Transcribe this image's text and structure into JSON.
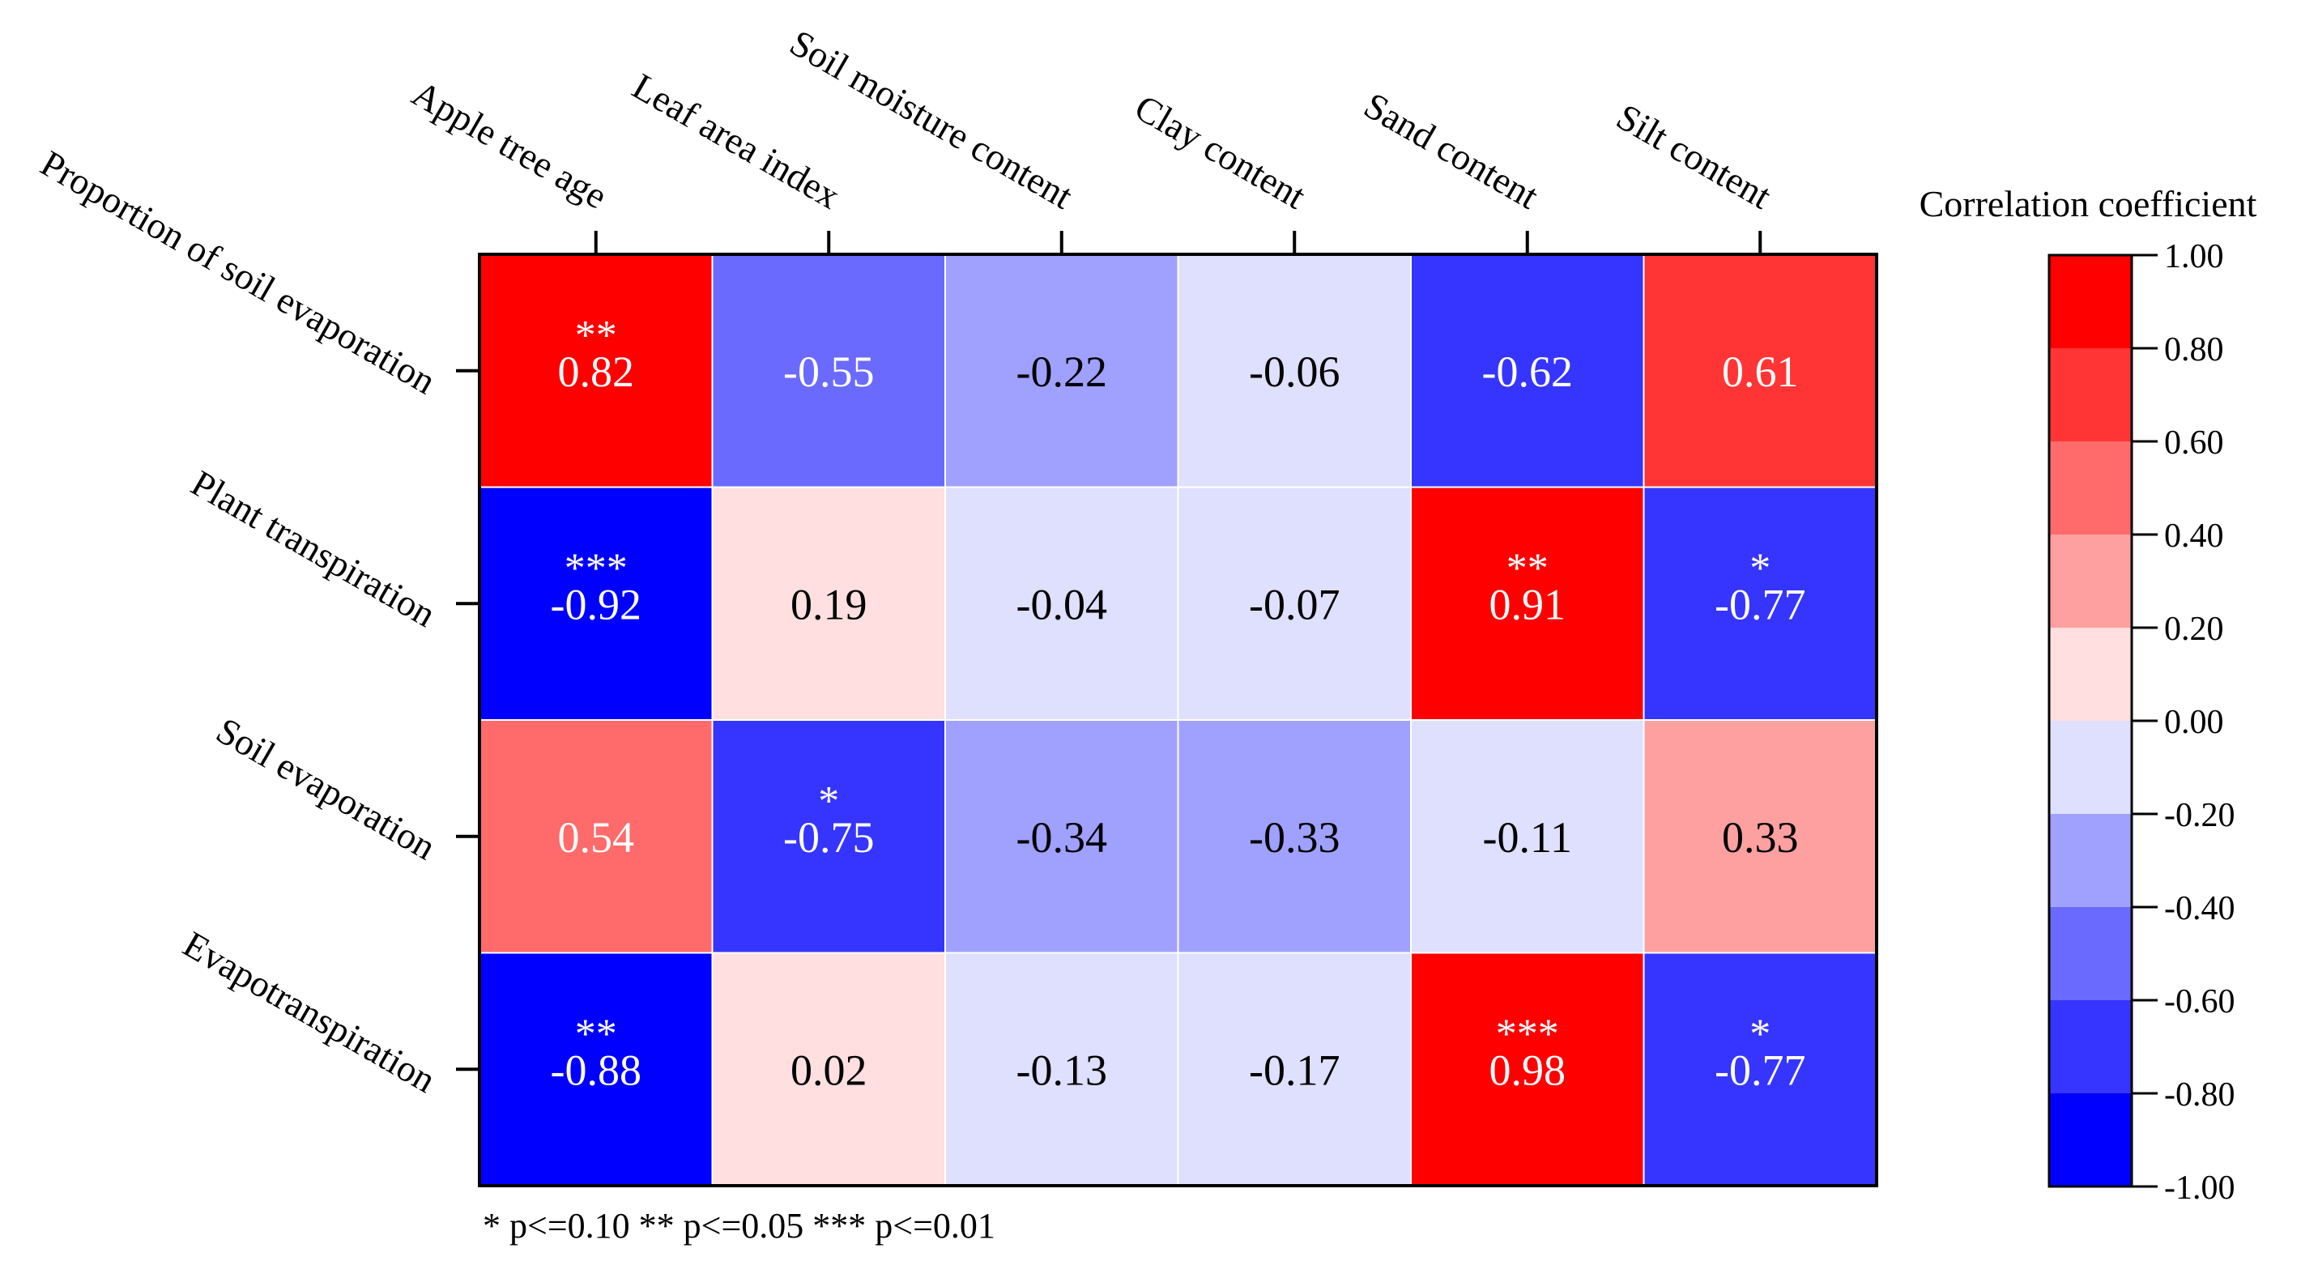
{
  "chart_data": {
    "type": "heatmap",
    "title": "",
    "columns": [
      "Apple tree age",
      "Leaf area index",
      "Soil moisture content",
      "Clay content",
      "Sand content",
      "Silt content"
    ],
    "rows": [
      "Proportion of soil evaporation",
      "Plant transpiration",
      "Soil evaporation",
      "Evapotranspiration"
    ],
    "values": [
      [
        0.82,
        -0.55,
        -0.22,
        -0.06,
        -0.62,
        0.61
      ],
      [
        -0.92,
        0.19,
        -0.04,
        -0.07,
        0.91,
        -0.77
      ],
      [
        0.54,
        -0.75,
        -0.34,
        -0.33,
        -0.11,
        0.33
      ],
      [
        -0.88,
        0.02,
        -0.13,
        -0.17,
        0.98,
        -0.77
      ]
    ],
    "labels": [
      [
        "0.82",
        "-0.55",
        "-0.22",
        "-0.06",
        "-0.62",
        "0.61"
      ],
      [
        "-0.92",
        "0.19",
        "-0.04",
        "-0.07",
        "0.91",
        "-0.77"
      ],
      [
        "0.54",
        "-0.75",
        "-0.34",
        "-0.33",
        "-0.11",
        "0.33"
      ],
      [
        "-0.88",
        "0.02",
        "-0.13",
        "-0.17",
        "0.98",
        "-0.77"
      ]
    ],
    "significance": [
      [
        "**",
        "",
        "",
        "",
        "",
        ""
      ],
      [
        "***",
        "",
        "",
        "",
        "**",
        "*"
      ],
      [
        "",
        "*",
        "",
        "",
        "",
        ""
      ],
      [
        "**",
        "",
        "",
        "",
        "***",
        "*"
      ]
    ],
    "colorbar": {
      "title": "Correlation coefficient",
      "range": [
        -1.0,
        1.0
      ],
      "tick_labels": [
        "1.00",
        "0.80",
        "0.60",
        "0.40",
        "0.20",
        "0.00",
        "-0.20",
        "-0.40",
        "-0.60",
        "-0.80",
        "-1.00"
      ],
      "bins_top_to_bottom": [
        "#ff0000",
        "#ff3535",
        "#ff6a6a",
        "#ffa0a0",
        "#ffdfdf",
        "#dfdffe",
        "#a0a0ff",
        "#6a6aff",
        "#3535ff",
        "#0000ff"
      ]
    },
    "footnote": "* p<=0.10 ** p<=0.05 *** p<=0.01"
  }
}
